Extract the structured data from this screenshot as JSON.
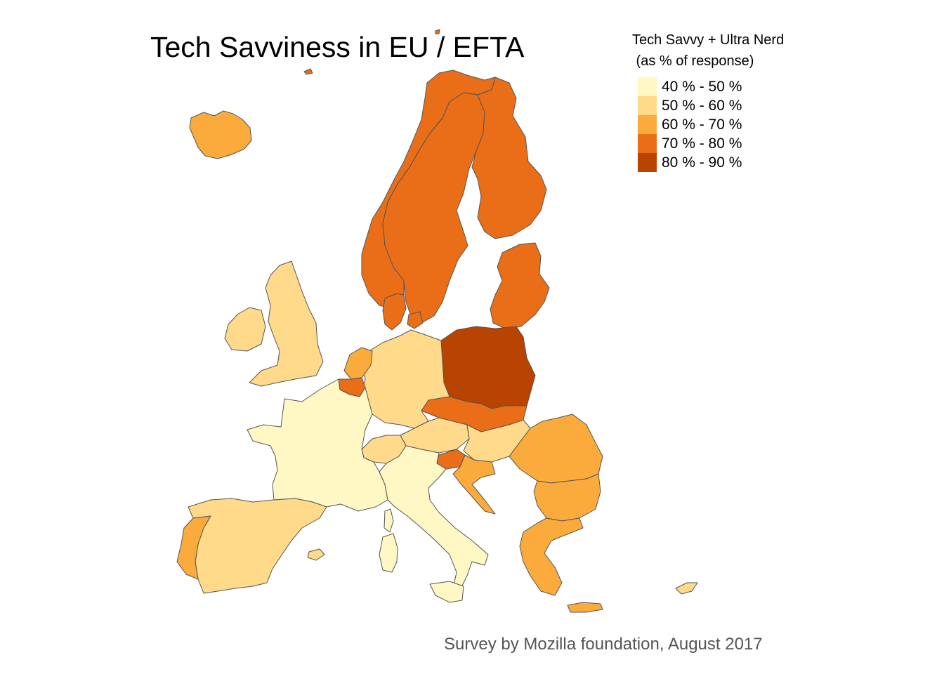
{
  "title": "Tech Savviness in EU / EFTA",
  "legend": {
    "title": "Tech Savvy + Ultra Nerd\n (as % of response)",
    "bins": [
      {
        "label": "40 % - 50 %",
        "color": "#FFF7C4"
      },
      {
        "label": "50 % - 60 %",
        "color": "#FEDA8A"
      },
      {
        "label": "60 % - 70 %",
        "color": "#FBAB3B"
      },
      {
        "label": "70 % - 80 %",
        "color": "#E96E17"
      },
      {
        "label": "80 % - 90 %",
        "color": "#B94300"
      }
    ]
  },
  "caption": "Survey by Mozilla foundation, August 2017",
  "regions": [
    {
      "name": "iceland",
      "bin": 2
    },
    {
      "name": "norway",
      "bin": 3
    },
    {
      "name": "sweden",
      "bin": 3
    },
    {
      "name": "finland",
      "bin": 3
    },
    {
      "name": "baltics",
      "bin": 3
    },
    {
      "name": "denmark",
      "bin": 3
    },
    {
      "name": "uk",
      "bin": 1
    },
    {
      "name": "ireland",
      "bin": 1
    },
    {
      "name": "netherlands",
      "bin": 2
    },
    {
      "name": "belgium",
      "bin": 3
    },
    {
      "name": "france",
      "bin": 0
    },
    {
      "name": "germany",
      "bin": 1
    },
    {
      "name": "switzerland",
      "bin": 1
    },
    {
      "name": "poland",
      "bin": 4
    },
    {
      "name": "czech-slovakia",
      "bin": 3
    },
    {
      "name": "austria",
      "bin": 1
    },
    {
      "name": "hungary",
      "bin": 1
    },
    {
      "name": "slovenia",
      "bin": 3
    },
    {
      "name": "croatia",
      "bin": 2
    },
    {
      "name": "italy",
      "bin": 0
    },
    {
      "name": "sardinia",
      "bin": 0
    },
    {
      "name": "corsica",
      "bin": 0
    },
    {
      "name": "sicily",
      "bin": 0
    },
    {
      "name": "spain",
      "bin": 1
    },
    {
      "name": "balearics",
      "bin": 1
    },
    {
      "name": "portugal",
      "bin": 2
    },
    {
      "name": "romania",
      "bin": 2
    },
    {
      "name": "bulgaria",
      "bin": 2
    },
    {
      "name": "greece",
      "bin": 2
    },
    {
      "name": "crete",
      "bin": 2
    },
    {
      "name": "cyprus",
      "bin": 1
    }
  ]
}
